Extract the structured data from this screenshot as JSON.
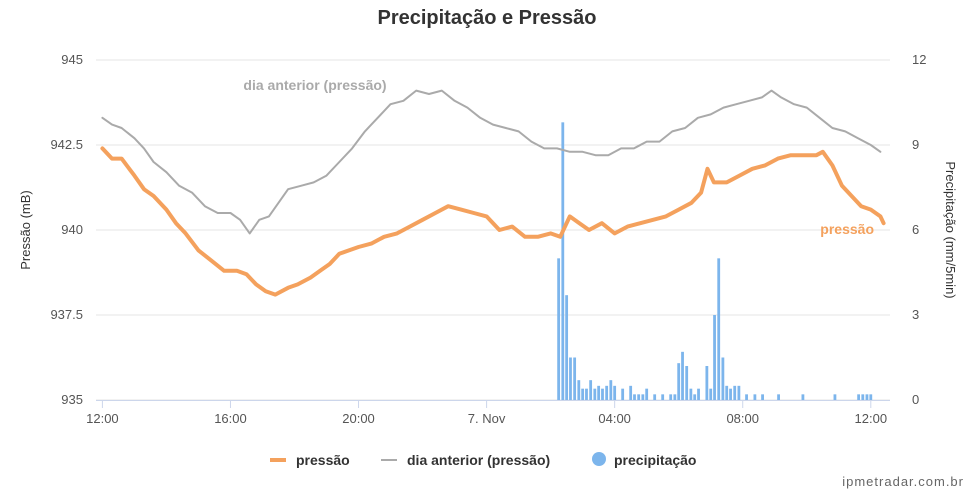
{
  "chart_data": {
    "type": "line",
    "title": "Precipitação e Pressão",
    "y_left": {
      "label": "Pressão (mB)",
      "range": [
        935,
        945
      ],
      "ticks": [
        "935",
        "937.5",
        "940",
        "942.5",
        "945"
      ]
    },
    "y_right": {
      "label": "Precipitação (mm/5min)",
      "range": [
        0,
        12
      ],
      "ticks": [
        "0",
        "3",
        "6",
        "9",
        "12"
      ]
    },
    "x_axis": {
      "range_hours": [
        -0.2,
        24.6
      ],
      "ticks": [
        {
          "h": 0,
          "label": "12:00"
        },
        {
          "h": 4,
          "label": "16:00"
        },
        {
          "h": 8,
          "label": "20:00"
        },
        {
          "h": 12,
          "label": "7. Nov"
        },
        {
          "h": 16,
          "label": "04:00"
        },
        {
          "h": 20,
          "label": "08:00"
        },
        {
          "h": 24,
          "label": "12:00"
        }
      ]
    },
    "grid": true,
    "series": [
      {
        "name": "pressão",
        "axis": "left",
        "color": "#f4a15d",
        "points": [
          [
            0,
            942.4
          ],
          [
            0.3,
            942.1
          ],
          [
            0.6,
            942.1
          ],
          [
            1.0,
            941.6
          ],
          [
            1.3,
            941.2
          ],
          [
            1.6,
            941.0
          ],
          [
            2.0,
            940.6
          ],
          [
            2.3,
            940.2
          ],
          [
            2.6,
            939.9
          ],
          [
            3.0,
            939.4
          ],
          [
            3.4,
            939.1
          ],
          [
            3.8,
            938.8
          ],
          [
            4.2,
            938.8
          ],
          [
            4.5,
            938.7
          ],
          [
            4.8,
            938.4
          ],
          [
            5.1,
            938.2
          ],
          [
            5.4,
            938.1
          ],
          [
            5.8,
            938.3
          ],
          [
            6.1,
            938.4
          ],
          [
            6.5,
            938.6
          ],
          [
            6.8,
            938.8
          ],
          [
            7.1,
            939.0
          ],
          [
            7.4,
            939.3
          ],
          [
            7.7,
            939.4
          ],
          [
            8.0,
            939.5
          ],
          [
            8.4,
            939.6
          ],
          [
            8.8,
            939.8
          ],
          [
            9.2,
            939.9
          ],
          [
            9.6,
            940.1
          ],
          [
            10.0,
            940.3
          ],
          [
            10.4,
            940.5
          ],
          [
            10.8,
            940.7
          ],
          [
            11.2,
            940.6
          ],
          [
            11.6,
            940.5
          ],
          [
            12.0,
            940.4
          ],
          [
            12.4,
            940.0
          ],
          [
            12.8,
            940.1
          ],
          [
            13.2,
            939.8
          ],
          [
            13.6,
            939.8
          ],
          [
            14.0,
            939.9
          ],
          [
            14.3,
            939.8
          ],
          [
            14.6,
            940.4
          ],
          [
            14.9,
            940.2
          ],
          [
            15.2,
            940.0
          ],
          [
            15.6,
            940.2
          ],
          [
            16.0,
            939.9
          ],
          [
            16.4,
            940.1
          ],
          [
            16.8,
            940.2
          ],
          [
            17.2,
            940.3
          ],
          [
            17.6,
            940.4
          ],
          [
            18.0,
            940.6
          ],
          [
            18.4,
            940.8
          ],
          [
            18.7,
            941.1
          ],
          [
            18.9,
            941.8
          ],
          [
            19.1,
            941.4
          ],
          [
            19.5,
            941.4
          ],
          [
            19.9,
            941.6
          ],
          [
            20.3,
            941.8
          ],
          [
            20.7,
            941.9
          ],
          [
            21.1,
            942.1
          ],
          [
            21.5,
            942.2
          ],
          [
            21.9,
            942.2
          ],
          [
            22.3,
            942.2
          ],
          [
            22.5,
            942.3
          ],
          [
            22.8,
            941.9
          ],
          [
            23.1,
            941.3
          ],
          [
            23.4,
            941.0
          ],
          [
            23.7,
            940.7
          ],
          [
            24.0,
            940.6
          ],
          [
            24.3,
            940.4
          ],
          [
            24.4,
            940.2
          ]
        ]
      },
      {
        "name": "dia anterior (pressão)",
        "axis": "left",
        "color": "#aaaaaa",
        "points": [
          [
            0,
            943.3
          ],
          [
            0.3,
            943.1
          ],
          [
            0.6,
            943.0
          ],
          [
            1.0,
            942.7
          ],
          [
            1.3,
            942.4
          ],
          [
            1.6,
            942.0
          ],
          [
            2.0,
            941.7
          ],
          [
            2.4,
            941.3
          ],
          [
            2.8,
            941.1
          ],
          [
            3.2,
            940.7
          ],
          [
            3.6,
            940.5
          ],
          [
            4.0,
            940.5
          ],
          [
            4.3,
            940.3
          ],
          [
            4.6,
            939.9
          ],
          [
            4.9,
            940.3
          ],
          [
            5.2,
            940.4
          ],
          [
            5.5,
            940.8
          ],
          [
            5.8,
            941.2
          ],
          [
            6.2,
            941.3
          ],
          [
            6.6,
            941.4
          ],
          [
            7.0,
            941.6
          ],
          [
            7.4,
            942.0
          ],
          [
            7.8,
            942.4
          ],
          [
            8.2,
            942.9
          ],
          [
            8.6,
            943.3
          ],
          [
            9.0,
            943.7
          ],
          [
            9.4,
            943.8
          ],
          [
            9.8,
            944.1
          ],
          [
            10.2,
            944.0
          ],
          [
            10.6,
            944.1
          ],
          [
            11.0,
            943.8
          ],
          [
            11.4,
            943.6
          ],
          [
            11.8,
            943.3
          ],
          [
            12.2,
            943.1
          ],
          [
            12.6,
            943.0
          ],
          [
            13.0,
            942.9
          ],
          [
            13.4,
            942.6
          ],
          [
            13.8,
            942.4
          ],
          [
            14.2,
            942.4
          ],
          [
            14.6,
            942.3
          ],
          [
            15.0,
            942.3
          ],
          [
            15.4,
            942.2
          ],
          [
            15.8,
            942.2
          ],
          [
            16.2,
            942.4
          ],
          [
            16.6,
            942.4
          ],
          [
            17.0,
            942.6
          ],
          [
            17.4,
            942.6
          ],
          [
            17.8,
            942.9
          ],
          [
            18.2,
            943.0
          ],
          [
            18.6,
            943.3
          ],
          [
            19.0,
            943.4
          ],
          [
            19.4,
            943.6
          ],
          [
            19.8,
            943.7
          ],
          [
            20.2,
            943.8
          ],
          [
            20.6,
            943.9
          ],
          [
            20.9,
            944.1
          ],
          [
            21.2,
            943.9
          ],
          [
            21.6,
            943.7
          ],
          [
            22.0,
            943.6
          ],
          [
            22.4,
            943.3
          ],
          [
            22.8,
            943.0
          ],
          [
            23.2,
            942.9
          ],
          [
            23.6,
            942.7
          ],
          [
            24.0,
            942.5
          ],
          [
            24.3,
            942.3
          ]
        ]
      },
      {
        "name": "precipitação",
        "axis": "right",
        "color": "#7cb5ec",
        "points": [
          [
            14.25,
            5.0
          ],
          [
            14.38,
            9.8
          ],
          [
            14.5,
            3.7
          ],
          [
            14.62,
            1.5
          ],
          [
            14.75,
            1.5
          ],
          [
            14.88,
            0.7
          ],
          [
            15.0,
            0.4
          ],
          [
            15.12,
            0.4
          ],
          [
            15.25,
            0.7
          ],
          [
            15.38,
            0.4
          ],
          [
            15.5,
            0.5
          ],
          [
            15.62,
            0.4
          ],
          [
            15.75,
            0.5
          ],
          [
            15.88,
            0.7
          ],
          [
            16.0,
            0.5
          ],
          [
            16.25,
            0.4
          ],
          [
            16.5,
            0.5
          ],
          [
            16.62,
            0.2
          ],
          [
            16.75,
            0.2
          ],
          [
            16.88,
            0.2
          ],
          [
            17.0,
            0.4
          ],
          [
            17.25,
            0.2
          ],
          [
            17.5,
            0.2
          ],
          [
            17.75,
            0.2
          ],
          [
            17.88,
            0.2
          ],
          [
            18.0,
            1.3
          ],
          [
            18.12,
            1.7
          ],
          [
            18.25,
            1.2
          ],
          [
            18.38,
            0.4
          ],
          [
            18.5,
            0.2
          ],
          [
            18.62,
            0.4
          ],
          [
            18.88,
            1.2
          ],
          [
            19.0,
            0.4
          ],
          [
            19.12,
            3.0
          ],
          [
            19.25,
            5.0
          ],
          [
            19.38,
            1.5
          ],
          [
            19.5,
            0.5
          ],
          [
            19.62,
            0.4
          ],
          [
            19.75,
            0.5
          ],
          [
            19.88,
            0.5
          ],
          [
            20.12,
            0.2
          ],
          [
            20.38,
            0.2
          ],
          [
            20.62,
            0.2
          ],
          [
            21.12,
            0.2
          ],
          [
            21.88,
            0.2
          ],
          [
            22.88,
            0.2
          ],
          [
            23.62,
            0.2
          ],
          [
            23.75,
            0.2
          ],
          [
            23.88,
            0.2
          ],
          [
            24.0,
            0.2
          ]
        ]
      }
    ],
    "series_labels": [
      {
        "text": "dia anterior (pressão)",
        "series": "dia anterior (pressão)"
      },
      {
        "text": "pressão",
        "series": "pressão"
      }
    ],
    "legend_position": "bottom-center"
  },
  "legend": [
    {
      "label": "pressão",
      "symbol": "line-thick",
      "color": "#f4a15d"
    },
    {
      "label": "dia anterior (pressão)",
      "symbol": "line-thin",
      "color": "#aaaaaa"
    },
    {
      "label": "precipitação",
      "symbol": "circle",
      "color": "#7cb5ec"
    }
  ],
  "credit": "ipmetradar.com.br"
}
